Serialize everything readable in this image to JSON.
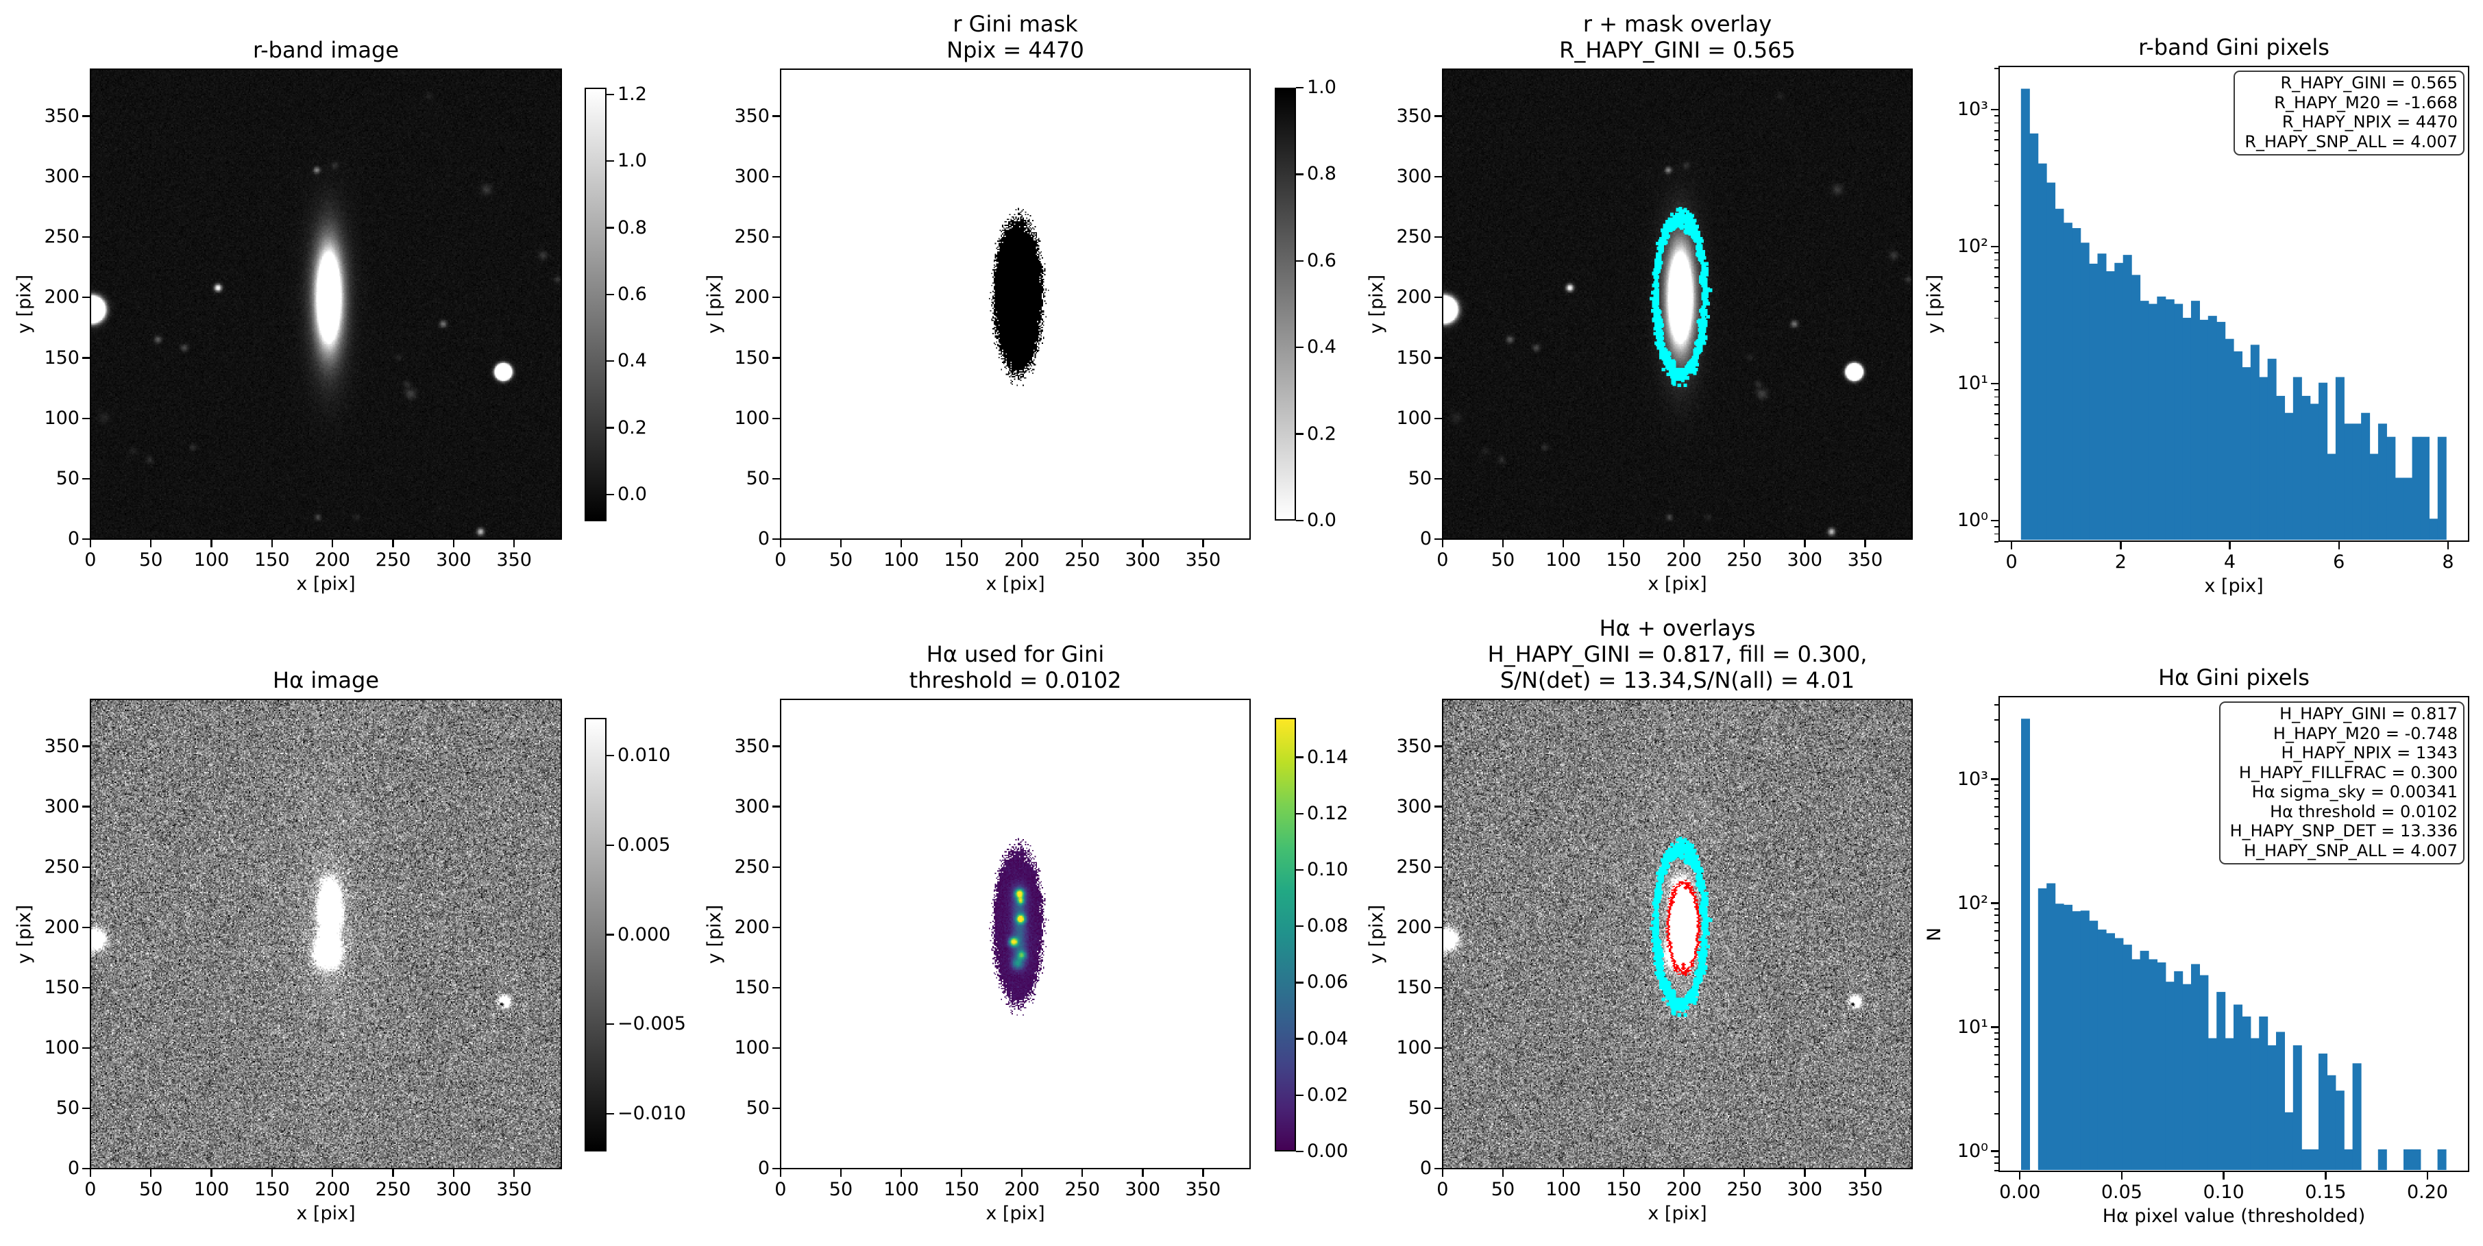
{
  "image_axes": {
    "xticks": [
      "0",
      "50",
      "100",
      "150",
      "200",
      "250",
      "300",
      "350"
    ],
    "yticks": [
      "0",
      "50",
      "100",
      "150",
      "200",
      "250",
      "300",
      "350"
    ],
    "range": [
      0,
      390
    ]
  },
  "panels": {
    "r_image": {
      "title": [
        "r-band image"
      ],
      "xlabel": "x [pix]",
      "ylabel": "y [pix]",
      "colormap": "gray",
      "colorbar": {
        "range": [
          -0.08,
          1.22
        ],
        "ticks": [
          "0.0",
          "0.2",
          "0.4",
          "0.6",
          "0.8",
          "1.0",
          "1.2"
        ]
      }
    },
    "r_mask": {
      "title": [
        "r Gini mask",
        "Npix = 4470"
      ],
      "xlabel": "x [pix]",
      "ylabel": "y [pix]",
      "colormap": "gray_r",
      "colorbar": {
        "range": [
          0,
          1
        ],
        "ticks": [
          "0.0",
          "0.2",
          "0.4",
          "0.6",
          "0.8",
          "1.0"
        ]
      }
    },
    "r_overlay": {
      "title": [
        "r + mask overlay",
        "R_HAPY_GINI = 0.565"
      ],
      "xlabel": "x [pix]",
      "ylabel": "y [pix]",
      "contour_color": "#00ffff"
    },
    "ha_image": {
      "title": [
        "Hα image"
      ],
      "xlabel": "x [pix]",
      "ylabel": "y [pix]",
      "colormap": "gray",
      "colorbar": {
        "range": [
          -0.0121,
          0.0121
        ],
        "ticks": [
          "−0.010",
          "−0.005",
          "0.000",
          "0.005",
          "0.010"
        ]
      }
    },
    "ha_gini": {
      "title": [
        "Hα used for Gini",
        "threshold = 0.0102"
      ],
      "xlabel": "x [pix]",
      "ylabel": "y [pix]",
      "colormap": "viridis",
      "colorbar": {
        "range": [
          0,
          0.154
        ],
        "ticks": [
          "0.00",
          "0.02",
          "0.04",
          "0.06",
          "0.08",
          "0.10",
          "0.12",
          "0.14"
        ]
      }
    },
    "ha_overlay": {
      "title": [
        "Hα + overlays",
        "H_HAPY_GINI = 0.817, fill = 0.300,",
        "S/N(det) = 13.34,S/N(all) = 4.01"
      ],
      "xlabel": "x [pix]",
      "ylabel": "y [pix]",
      "contour_colors": {
        "mask": "#00ffff",
        "detection": "#ff0000"
      }
    }
  },
  "chart_data": [
    {
      "type": "bar",
      "title": "r-band Gini pixels",
      "xlabel": "x [pix]",
      "ylabel": "y [pix]",
      "yscale": "log",
      "bin_range": [
        0.15,
        8.0
      ],
      "values": [
        1450,
        680,
        409,
        296,
        190,
        150,
        137,
        107,
        75,
        89,
        66,
        76,
        87,
        62,
        40,
        38,
        43,
        41,
        38,
        30,
        40,
        29,
        31,
        28,
        21,
        17,
        13,
        19,
        11,
        15,
        8,
        6,
        11,
        8,
        7,
        10,
        3,
        11,
        5,
        5,
        6,
        3,
        5,
        4,
        2,
        2,
        4,
        4,
        1,
        4
      ],
      "xlim": [
        -0.24,
        8.39
      ],
      "ylim": [
        0.7,
        2090
      ],
      "xticks": [
        "0",
        "2",
        "4",
        "6",
        "8"
      ],
      "yticks": [
        "10⁰",
        "10¹",
        "10²",
        "10³"
      ],
      "bar_color": "#1f77b4",
      "grid": false,
      "annotation": [
        "R_HAPY_GINI = 0.565",
        "R_HAPY_M20 = -1.668",
        "R_HAPY_NPIX = 4470",
        "R_HAPY_SNP_ALL = 4.007"
      ],
      "annotation_placement": "top-right"
    },
    {
      "type": "bar",
      "title": "Hα Gini pixels",
      "xlabel": "Hα pixel value (thresholded)",
      "ylabel": "N",
      "yscale": "log",
      "bin_range": [
        0.0,
        0.21
      ],
      "values": [
        3150,
        0,
        132,
        145,
        99,
        97,
        86,
        87,
        72,
        61,
        57,
        52,
        46,
        35,
        41,
        35,
        33,
        23,
        28,
        22,
        32,
        26,
        8,
        19,
        8,
        15,
        12,
        8,
        12,
        7,
        9,
        2,
        7,
        1,
        1,
        6,
        4,
        3,
        1,
        5,
        0,
        0,
        1,
        0,
        0,
        1,
        1,
        0,
        0,
        1
      ],
      "xlim": [
        -0.0105,
        0.2205
      ],
      "ylim": [
        0.68,
        4700
      ],
      "xticks": [
        "0.00",
        "0.05",
        "0.10",
        "0.15",
        "0.20"
      ],
      "yticks": [
        "10⁰",
        "10¹",
        "10²",
        "10³"
      ],
      "bar_color": "#1f77b4",
      "grid": false,
      "annotation": [
        "H_HAPY_GINI = 0.817",
        "H_HAPY_M20 = -0.748",
        "H_HAPY_NPIX = 1343",
        "H_HAPY_FILLFRAC = 0.300",
        "Hα sigma_sky = 0.00341",
        "Hα threshold = 0.0102",
        "H_HAPY_SNP_DET = 13.336",
        "H_HAPY_SNP_ALL = 4.007"
      ],
      "annotation_placement": "top-right"
    }
  ]
}
